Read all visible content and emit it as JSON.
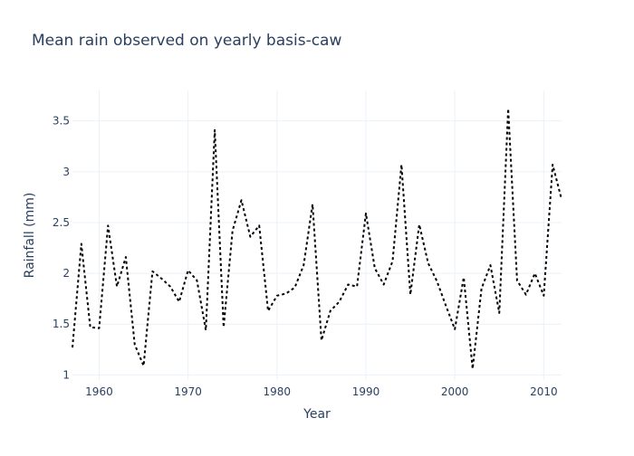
{
  "chart_data": {
    "type": "line",
    "title": "Mean rain observed on yearly basis-caw",
    "xlabel": "Year",
    "ylabel": "Rainfall (mm)",
    "xlim": [
      1957,
      2012
    ],
    "ylim": [
      0.95,
      3.8
    ],
    "x_ticks": [
      1960,
      1970,
      1980,
      1990,
      2000,
      2010
    ],
    "y_ticks": [
      1,
      1.5,
      2,
      2.5,
      3,
      3.5
    ],
    "grid": true,
    "legend": "none",
    "line_style": "dotted",
    "line_color": "#000000",
    "series": [
      {
        "x": [
          1957,
          1958,
          1959,
          1960,
          1961,
          1962,
          1963,
          1964,
          1965,
          1966,
          1967,
          1968,
          1969,
          1970,
          1971,
          1972,
          1973,
          1974,
          1975,
          1976,
          1977,
          1978,
          1979,
          1980,
          1981,
          1982,
          1983,
          1984,
          1985,
          1986,
          1987,
          1988,
          1989,
          1990,
          1991,
          1992,
          1993,
          1994,
          1995,
          1996,
          1997,
          1998,
          1999,
          2000,
          2001,
          2002,
          2003,
          2004,
          2005,
          2006,
          2007,
          2008,
          2009,
          2010,
          2011,
          2012
        ],
        "y": [
          1.27,
          2.29,
          1.47,
          1.46,
          2.47,
          1.87,
          2.16,
          1.3,
          1.09,
          2.02,
          1.95,
          1.87,
          1.72,
          2.03,
          1.93,
          1.44,
          3.41,
          1.47,
          2.42,
          2.72,
          2.36,
          2.47,
          1.63,
          1.78,
          1.8,
          1.86,
          2.08,
          2.68,
          1.34,
          1.63,
          1.72,
          1.89,
          1.87,
          2.59,
          2.05,
          1.89,
          2.12,
          3.07,
          1.79,
          2.48,
          2.1,
          1.92,
          1.68,
          1.45,
          1.96,
          1.06,
          1.85,
          2.08,
          1.61,
          3.62,
          1.93,
          1.79,
          2.0,
          1.78,
          3.07,
          2.73
        ]
      }
    ]
  }
}
